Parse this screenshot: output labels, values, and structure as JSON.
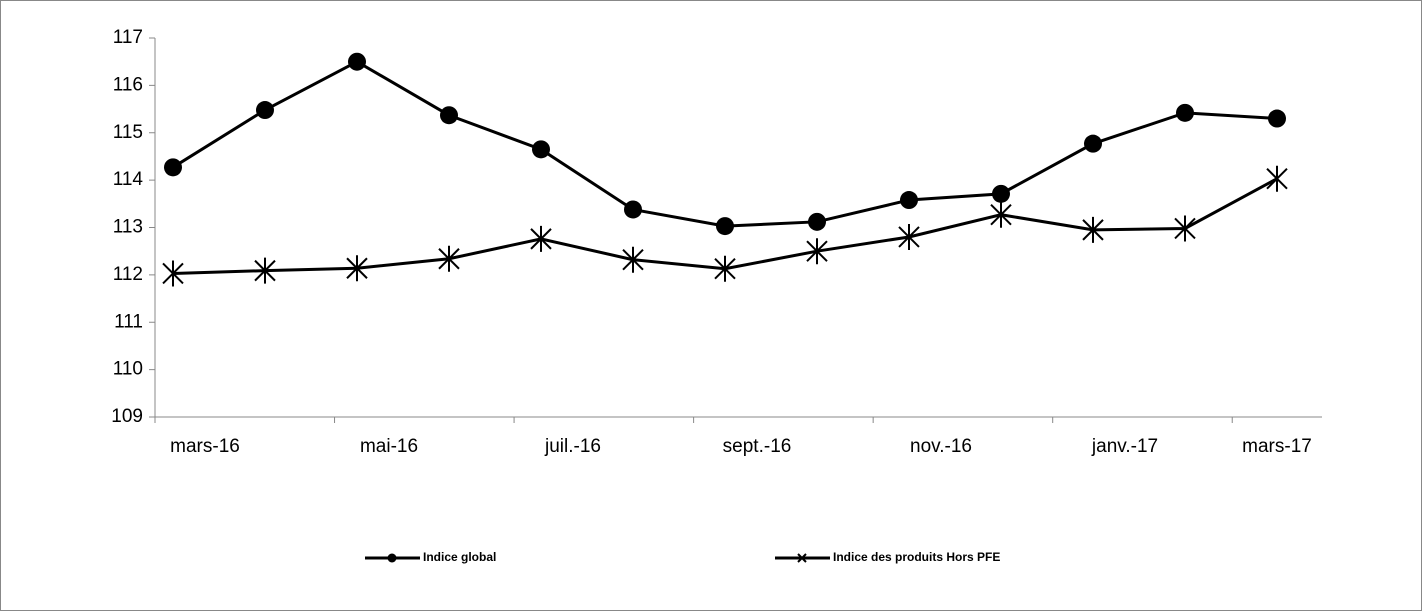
{
  "chart_data": {
    "type": "line",
    "categories": [
      "mars-16",
      null,
      "mai-16",
      null,
      "juil.-16",
      null,
      "sept.-16",
      null,
      "nov.-16",
      null,
      "janv.-17",
      null,
      "mars-17"
    ],
    "series": [
      {
        "name": "Indice global",
        "color": "#000000",
        "marker": "circle",
        "values": [
          114.27,
          115.48,
          116.5,
          115.37,
          114.65,
          113.38,
          113.03,
          113.12,
          113.58,
          113.71,
          114.77,
          115.42,
          115.3
        ]
      },
      {
        "name": "Indice des produits Hors PFE",
        "color": "#000000",
        "marker": "star",
        "values": [
          112.03,
          112.09,
          112.14,
          112.34,
          112.76,
          112.32,
          112.13,
          112.5,
          112.8,
          113.27,
          112.95,
          112.98,
          114.03
        ]
      }
    ],
    "ylim": [
      109,
      117
    ],
    "yticks": [
      109,
      110,
      111,
      112,
      113,
      114,
      115,
      116,
      117
    ],
    "grid": false,
    "legend": "bottom"
  }
}
